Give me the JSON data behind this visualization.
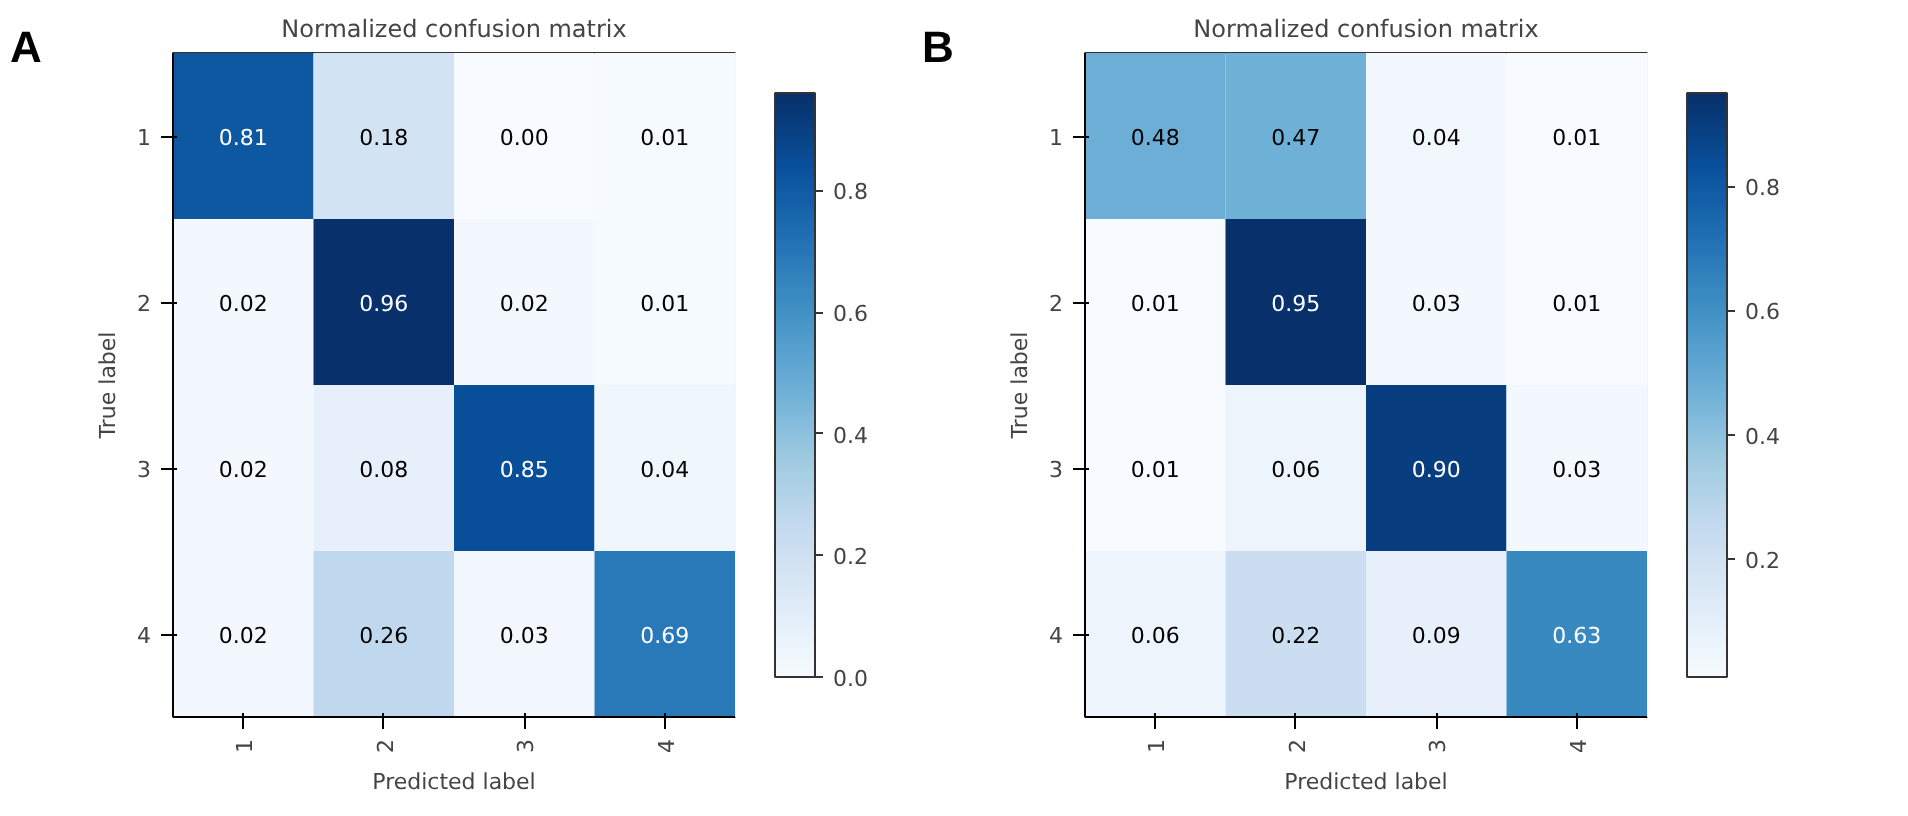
{
  "chart_data": [
    {
      "type": "heatmap",
      "title": "Normalized confusion matrix",
      "xlabel": "Predicted label",
      "ylabel": "True label",
      "annotations": [
        "A"
      ],
      "categories": [
        "1",
        "2",
        "3",
        "4"
      ],
      "y_categories": [
        "1",
        "2",
        "3",
        "4"
      ],
      "cells": [
        [
          0.81,
          0.18,
          0.0,
          0.01
        ],
        [
          0.02,
          0.96,
          0.02,
          0.01
        ],
        [
          0.02,
          0.08,
          0.85,
          0.04
        ],
        [
          0.02,
          0.26,
          0.03,
          0.69
        ]
      ],
      "cell_labels": [
        [
          "0.81",
          "0.18",
          "0.00",
          "0.01"
        ],
        [
          "0.02",
          "0.96",
          "0.02",
          "0.01"
        ],
        [
          "0.02",
          "0.08",
          "0.85",
          "0.04"
        ],
        [
          "0.02",
          "0.26",
          "0.03",
          "0.69"
        ]
      ],
      "clim": [
        0.0,
        0.96
      ],
      "cticks": [
        {
          "value": 0.0,
          "label": "0.0"
        },
        {
          "value": 0.2,
          "label": "0.2"
        },
        {
          "value": 0.4,
          "label": "0.4"
        },
        {
          "value": 0.6,
          "label": "0.6"
        },
        {
          "value": 0.8,
          "label": "0.8"
        }
      ]
    },
    {
      "type": "heatmap",
      "title": "Normalized confusion matrix",
      "xlabel": "Predicted label",
      "ylabel": "True label",
      "annotations": [
        "B"
      ],
      "categories": [
        "1",
        "2",
        "3",
        "4"
      ],
      "y_categories": [
        "1",
        "2",
        "3",
        "4"
      ],
      "cells": [
        [
          0.48,
          0.47,
          0.04,
          0.01
        ],
        [
          0.01,
          0.95,
          0.03,
          0.01
        ],
        [
          0.01,
          0.06,
          0.9,
          0.03
        ],
        [
          0.06,
          0.22,
          0.09,
          0.63
        ]
      ],
      "cell_labels": [
        [
          "0.48",
          "0.47",
          "0.04",
          "0.01"
        ],
        [
          "0.01",
          "0.95",
          "0.03",
          "0.01"
        ],
        [
          "0.01",
          "0.06",
          "0.90",
          "0.03"
        ],
        [
          "0.06",
          "0.22",
          "0.09",
          "0.63"
        ]
      ],
      "clim": [
        0.01,
        0.95
      ],
      "cticks": [
        {
          "value": 0.2,
          "label": "0.2"
        },
        {
          "value": 0.4,
          "label": "0.4"
        },
        {
          "value": 0.6,
          "label": "0.6"
        },
        {
          "value": 0.8,
          "label": "0.8"
        }
      ]
    }
  ]
}
